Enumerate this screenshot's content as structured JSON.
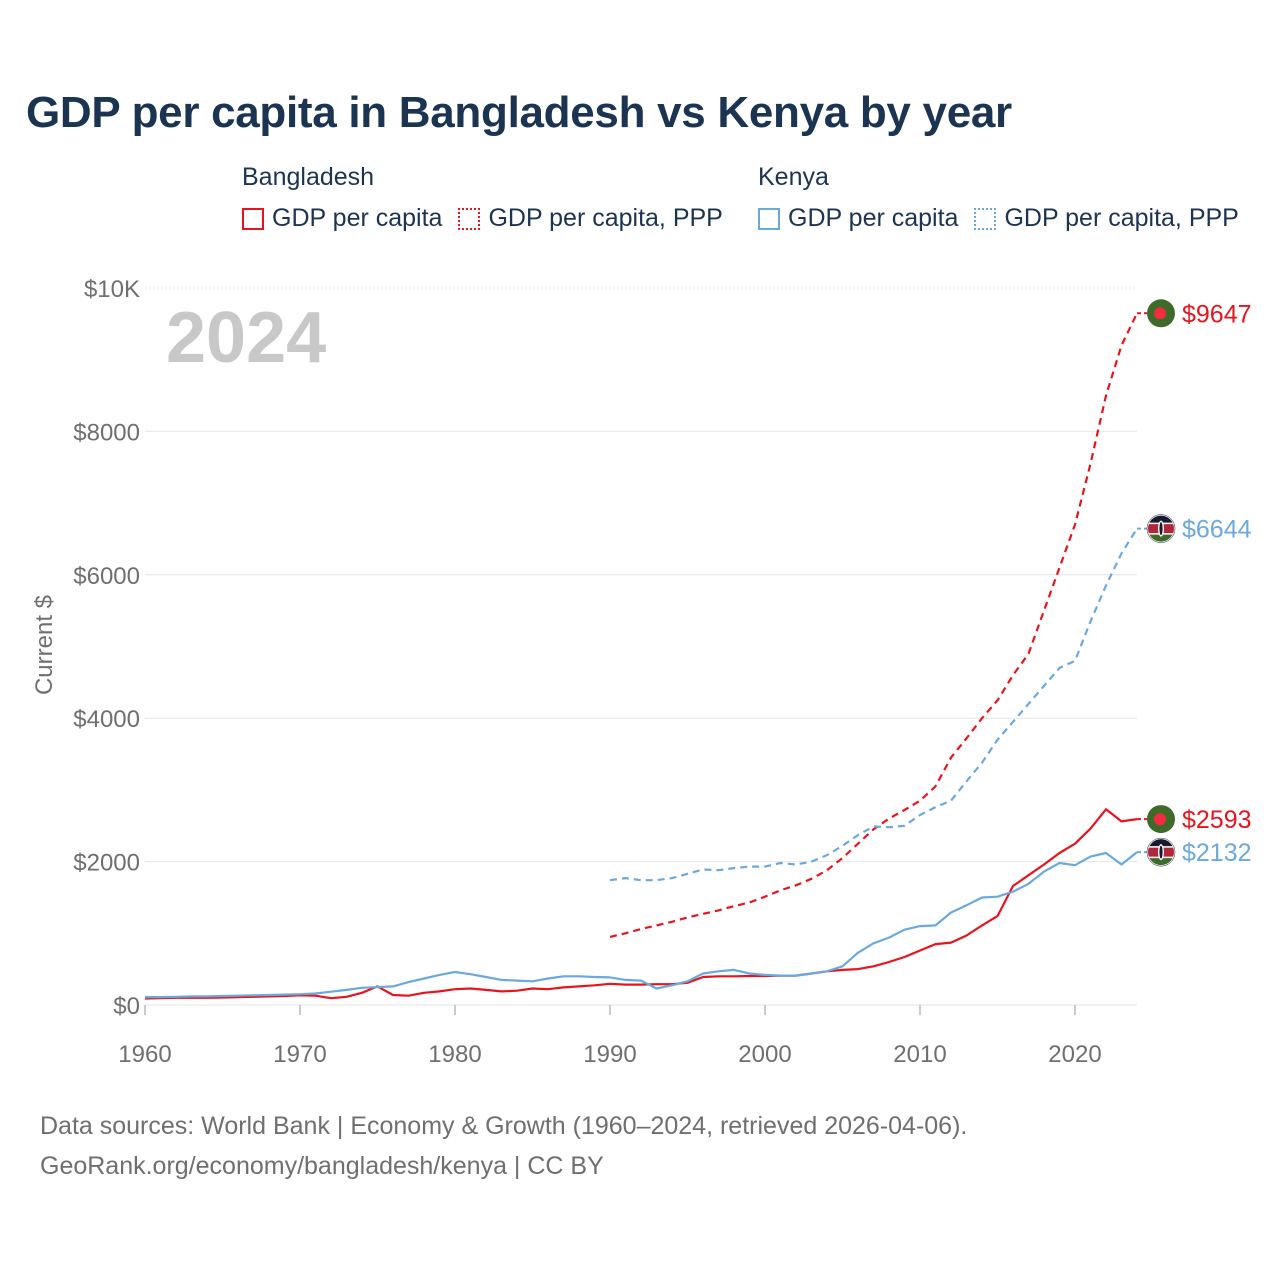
{
  "title": "GDP per capita in Bangladesh vs Kenya by year",
  "legend": {
    "groups": [
      {
        "name": "Bangladesh",
        "items": [
          {
            "label": "GDP per capita",
            "style": "solid",
            "color": "#e8141c"
          },
          {
            "label": "GDP per capita, PPP",
            "style": "dotted",
            "color": "#e8141c"
          }
        ]
      },
      {
        "name": "Kenya",
        "items": [
          {
            "label": "GDP per capita",
            "style": "solid",
            "color": "#6aa9e0"
          },
          {
            "label": "GDP per capita, PPP",
            "style": "dotted",
            "color": "#6aa9e0"
          }
        ]
      }
    ]
  },
  "year_watermark": "2024",
  "chart_data": {
    "type": "line",
    "title": "GDP per capita in Bangladesh vs Kenya by year",
    "xlabel": "",
    "ylabel": "Current $",
    "xlim": [
      1960,
      2024
    ],
    "ylim": [
      0,
      10000
    ],
    "x_ticks": [
      1960,
      1970,
      1980,
      1990,
      2000,
      2010,
      2020
    ],
    "x_tick_labels": [
      "1960",
      "1970",
      "1980",
      "1990",
      "2000",
      "2010",
      "2020"
    ],
    "y_ticks": [
      0,
      2000,
      4000,
      6000,
      8000,
      10000
    ],
    "y_tick_labels": [
      "$0",
      "$2000",
      "$4000",
      "$6000",
      "$8000",
      "$10K"
    ],
    "grid": true,
    "series": [
      {
        "name": "Bangladesh GDP per capita, PPP",
        "country": "Bangladesh",
        "color": "#e8141c",
        "dash": true,
        "end_label": "$9647",
        "flag": "bangladesh",
        "x": [
          1990,
          1991,
          1992,
          1993,
          1994,
          1995,
          1996,
          1997,
          1998,
          1999,
          2000,
          2001,
          2002,
          2003,
          2004,
          2005,
          2006,
          2007,
          2008,
          2009,
          2010,
          2011,
          2012,
          2013,
          2014,
          2015,
          2016,
          2017,
          2018,
          2019,
          2020,
          2021,
          2022,
          2023,
          2024
        ],
        "values": [
          950,
          1000,
          1060,
          1110,
          1160,
          1220,
          1270,
          1320,
          1380,
          1430,
          1510,
          1600,
          1670,
          1760,
          1880,
          2050,
          2250,
          2450,
          2600,
          2720,
          2850,
          3050,
          3450,
          3720,
          4000,
          4250,
          4600,
          4900,
          5500,
          6100,
          6700,
          7550,
          8500,
          9200,
          9647
        ]
      },
      {
        "name": "Kenya GDP per capita, PPP",
        "country": "Kenya",
        "color": "#6aa9e0",
        "dash": true,
        "end_label": "$6644",
        "flag": "kenya",
        "x": [
          1990,
          1991,
          1992,
          1993,
          1994,
          1995,
          1996,
          1997,
          1998,
          1999,
          2000,
          2001,
          2002,
          2003,
          2004,
          2005,
          2006,
          2007,
          2008,
          2009,
          2010,
          2011,
          2012,
          2013,
          2014,
          2015,
          2016,
          2017,
          2018,
          2019,
          2020,
          2021,
          2022,
          2023,
          2024
        ],
        "values": [
          1740,
          1770,
          1740,
          1740,
          1770,
          1830,
          1890,
          1880,
          1910,
          1930,
          1930,
          1980,
          1960,
          2000,
          2090,
          2220,
          2370,
          2490,
          2480,
          2500,
          2650,
          2760,
          2850,
          3120,
          3380,
          3700,
          3950,
          4200,
          4450,
          4700,
          4800,
          5350,
          5850,
          6300,
          6644
        ]
      },
      {
        "name": "Bangladesh GDP per capita",
        "country": "Bangladesh",
        "color": "#e8141c",
        "dash": false,
        "end_label": "$2593",
        "flag": "bangladesh",
        "x": [
          1960,
          1961,
          1962,
          1963,
          1964,
          1965,
          1966,
          1967,
          1968,
          1969,
          1970,
          1971,
          1972,
          1973,
          1974,
          1975,
          1976,
          1977,
          1978,
          1979,
          1980,
          1981,
          1982,
          1983,
          1984,
          1985,
          1986,
          1987,
          1988,
          1989,
          1990,
          1991,
          1992,
          1993,
          1994,
          1995,
          1996,
          1997,
          1998,
          1999,
          2000,
          2001,
          2002,
          2003,
          2004,
          2005,
          2006,
          2007,
          2008,
          2009,
          2010,
          2011,
          2012,
          2013,
          2014,
          2015,
          2016,
          2017,
          2018,
          2019,
          2020,
          2021,
          2022,
          2023,
          2024
        ],
        "values": [
          90,
          95,
          100,
          100,
          100,
          105,
          110,
          115,
          120,
          125,
          135,
          130,
          95,
          115,
          170,
          260,
          140,
          130,
          170,
          190,
          220,
          230,
          210,
          190,
          200,
          230,
          220,
          245,
          260,
          275,
          295,
          285,
          285,
          290,
          290,
          310,
          390,
          400,
          400,
          405,
          405,
          410,
          410,
          440,
          470,
          490,
          500,
          540,
          600,
          670,
          760,
          850,
          870,
          970,
          1110,
          1240,
          1660,
          1810,
          1960,
          2120,
          2250,
          2460,
          2730,
          2560,
          2593
        ]
      },
      {
        "name": "Kenya GDP per capita",
        "country": "Kenya",
        "color": "#6aa9e0",
        "dash": false,
        "end_label": "$2132",
        "flag": "kenya",
        "x": [
          1960,
          1961,
          1962,
          1963,
          1964,
          1965,
          1966,
          1967,
          1968,
          1969,
          1970,
          1971,
          1972,
          1973,
          1974,
          1975,
          1976,
          1977,
          1978,
          1979,
          1980,
          1981,
          1982,
          1983,
          1984,
          1985,
          1986,
          1987,
          1988,
          1989,
          1990,
          1991,
          1992,
          1993,
          1994,
          1995,
          1996,
          1997,
          1998,
          1999,
          2000,
          2001,
          2002,
          2003,
          2004,
          2005,
          2006,
          2007,
          2008,
          2009,
          2010,
          2011,
          2012,
          2013,
          2014,
          2015,
          2016,
          2017,
          2018,
          2019,
          2020,
          2021,
          2022,
          2023,
          2024
        ],
        "values": [
          110,
          110,
          115,
          120,
          120,
          125,
          130,
          135,
          140,
          145,
          150,
          160,
          185,
          210,
          240,
          250,
          260,
          320,
          370,
          420,
          460,
          430,
          390,
          350,
          340,
          330,
          370,
          400,
          400,
          390,
          385,
          350,
          340,
          230,
          275,
          330,
          440,
          470,
          490,
          440,
          420,
          410,
          410,
          440,
          470,
          540,
          730,
          860,
          940,
          1050,
          1100,
          1110,
          1290,
          1390,
          1500,
          1510,
          1580,
          1690,
          1860,
          1980,
          1950,
          2070,
          2120,
          1960,
          2132
        ]
      }
    ]
  },
  "footer": {
    "sources": "Data sources: World Bank | Economy & Growth (1960–2024, retrieved 2026-04-06).",
    "attribution": "GeoRank.org/economy/bangladesh/kenya | CC BY"
  }
}
